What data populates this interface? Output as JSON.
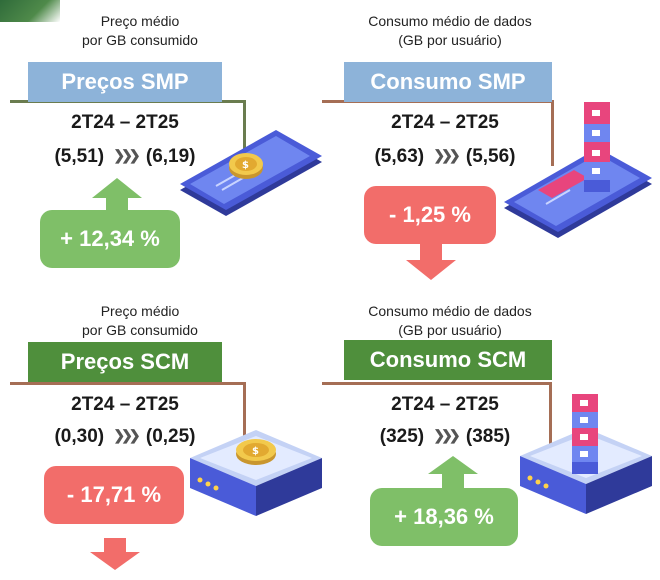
{
  "panels": [
    {
      "caption": "Preço médio\npor GB consumido",
      "title": "Preços SMP",
      "period": "2T24 – 2T25",
      "from": "(5,51)",
      "to": "(6,19)",
      "change": "+ 12,34 %",
      "direction": "up",
      "device": "smartphone-coin",
      "banner_color": "#8db3d9"
    },
    {
      "caption": "Consumo médio de dados\n(GB por usuário)",
      "title": "Consumo SMP",
      "period": "2T24 – 2T25",
      "from": "(5,63)",
      "to": "(5,56)",
      "change": "- 1,25 %",
      "direction": "down",
      "device": "smartphone-data-blocks",
      "banner_color": "#8db3d9"
    },
    {
      "caption": "Preço médio\npor GB consumido",
      "title": "Preços SCM",
      "period": "2T24 – 2T25",
      "from": "(0,30)",
      "to": "(0,25)",
      "change": "- 17,71 %",
      "direction": "down",
      "device": "router-coin",
      "banner_color": "#4f8f3c"
    },
    {
      "caption": "Consumo médio de dados\n(GB por usuário)",
      "title": "Consumo SCM",
      "period": "2T24 – 2T25",
      "from": "(325)",
      "to": "(385)",
      "change": "+ 18,36 %",
      "direction": "up",
      "device": "router-data-blocks",
      "banner_color": "#4f8f3c"
    }
  ],
  "chevron": "❯❯❯",
  "colors": {
    "positive": "#7fbf68",
    "negative": "#f26d6a",
    "blue_banner": "#8db3d9",
    "green_banner": "#4f8f3c"
  }
}
